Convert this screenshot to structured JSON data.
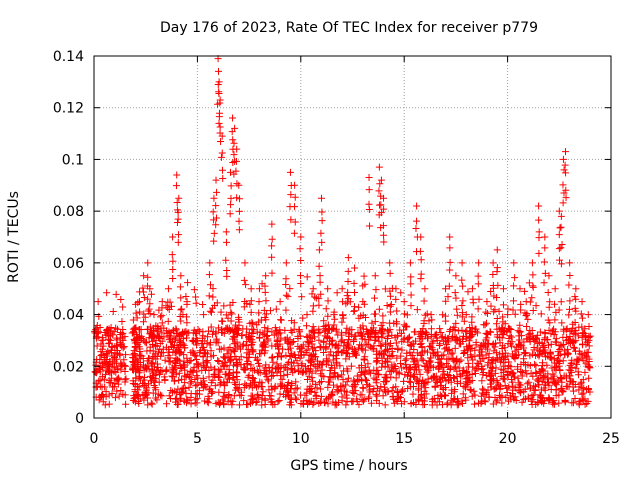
{
  "chart_data": {
    "type": "scatter",
    "title": "Day 176 of 2023, Rate Of TEC Index for receiver p779",
    "xlabel": "GPS time / hours",
    "ylabel": "ROTI / TECUs",
    "xlim": [
      0,
      25
    ],
    "ylim": [
      0,
      0.14
    ],
    "xticks": [
      0,
      5,
      10,
      15,
      20,
      25
    ],
    "xtick_labels": [
      "0",
      "5",
      "10",
      "15",
      "20",
      "25"
    ],
    "yticks": [
      0,
      0.02,
      0.04,
      0.06,
      0.08,
      0.1,
      0.12,
      0.14
    ],
    "ytick_labels": [
      "0",
      "0.02",
      "0.04",
      "0.06",
      "0.08",
      "0.1",
      "0.12",
      "0.14"
    ],
    "grid": true,
    "marker": "+",
    "color": "#ff0000",
    "series": [
      {
        "name": "ROTI",
        "x": [
          0.1,
          0.2,
          0.3,
          0.4,
          0.5,
          0.6,
          0.7,
          0.8,
          0.9,
          1.0,
          1.1,
          1.2,
          1.3,
          1.4,
          1.5,
          2.0,
          2.2,
          2.4,
          2.6,
          2.7,
          2.9,
          3.0,
          3.3,
          3.6,
          3.8,
          4.0,
          4.1,
          4.2,
          4.3,
          4.5,
          4.8,
          5.0,
          5.3,
          5.6,
          5.8,
          5.9,
          6.0,
          6.05,
          6.1,
          6.2,
          6.4,
          6.6,
          6.7,
          6.8,
          6.9,
          7.0,
          7.3,
          7.6,
          8.0,
          8.3,
          8.6,
          9.0,
          9.3,
          9.5,
          9.7,
          10.0,
          10.3,
          10.6,
          10.9,
          11.0,
          11.3,
          11.6,
          12.0,
          12.3,
          12.6,
          13.0,
          13.3,
          13.6,
          13.8,
          13.9,
          14.0,
          14.3,
          14.6,
          15.0,
          15.3,
          15.6,
          15.8,
          16.0,
          16.3,
          16.6,
          17.0,
          17.2,
          17.5,
          17.8,
          18.0,
          18.3,
          18.6,
          19.0,
          19.3,
          19.5,
          19.8,
          20.0,
          20.3,
          20.6,
          20.9,
          21.2,
          21.5,
          21.8,
          22.0,
          22.3,
          22.5,
          22.6,
          22.7,
          22.8,
          23.0,
          23.3,
          23.6,
          23.9
        ],
        "y": [
          0.012,
          0.045,
          0.02,
          0.03,
          0.015,
          0.025,
          0.018,
          0.03,
          0.012,
          0.022,
          0.028,
          0.015,
          0.02,
          0.03,
          0.018,
          0.03,
          0.045,
          0.055,
          0.06,
          0.05,
          0.04,
          0.03,
          0.045,
          0.05,
          0.07,
          0.094,
          0.085,
          0.055,
          0.04,
          0.045,
          0.03,
          0.03,
          0.04,
          0.06,
          0.085,
          0.092,
          0.139,
          0.13,
          0.123,
          0.109,
          0.072,
          0.095,
          0.116,
          0.112,
          0.104,
          0.09,
          0.06,
          0.05,
          0.05,
          0.055,
          0.075,
          0.045,
          0.06,
          0.095,
          0.09,
          0.07,
          0.04,
          0.05,
          0.065,
          0.085,
          0.05,
          0.04,
          0.05,
          0.062,
          0.058,
          0.045,
          0.093,
          0.055,
          0.097,
          0.092,
          0.085,
          0.06,
          0.05,
          0.045,
          0.06,
          0.082,
          0.07,
          0.05,
          0.04,
          0.03,
          0.05,
          0.07,
          0.055,
          0.06,
          0.04,
          0.05,
          0.06,
          0.045,
          0.06,
          0.065,
          0.05,
          0.04,
          0.06,
          0.05,
          0.045,
          0.06,
          0.082,
          0.07,
          0.055,
          0.05,
          0.08,
          0.078,
          0.1,
          0.103,
          0.06,
          0.05,
          0.045,
          0.04
        ]
      }
    ],
    "background_band": {
      "description": "dense cloud of points spanning full time range",
      "y_low": 0.005,
      "y_high": 0.035
    }
  }
}
